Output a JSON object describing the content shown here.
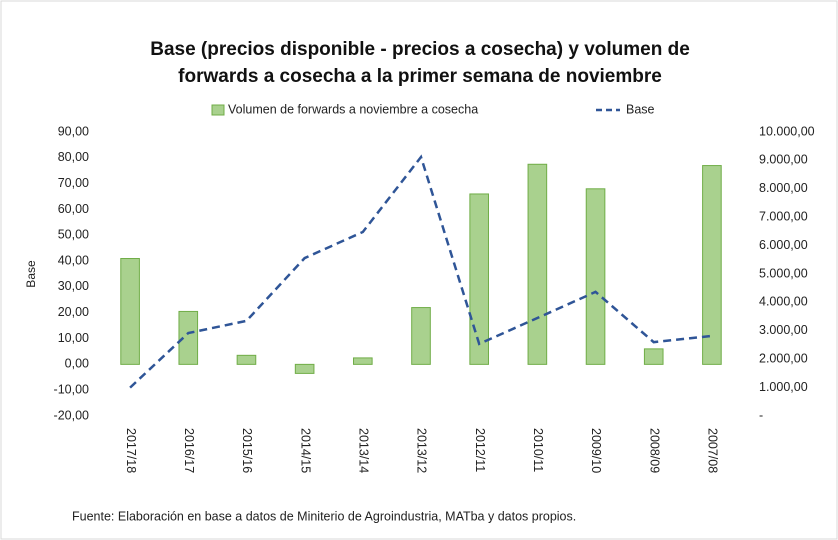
{
  "chart_data": {
    "type": "bar_line",
    "title": [
      "Base (precios disponible - precios a cosecha) y volumen de",
      "forwards a cosecha a la primer semana de noviembre"
    ],
    "y_label": "Base",
    "source": "Fuente: Elaboración en base a datos de Miniterio de Agroindustria, MATba y datos propios.",
    "categories": [
      "2017/18",
      "2016/17",
      "2015/16",
      "2014/15",
      "2013/14",
      "2013/12",
      "2012/11",
      "2010/11",
      "2009/10",
      "2008/09",
      "2007/08"
    ],
    "series": [
      {
        "name": "Volumen de forwards a noviembre a cosecha",
        "type": "bar",
        "color": "#a9d18e",
        "edge": "#70ad47",
        "values": [
          41,
          20.5,
          3.5,
          -3.5,
          2.5,
          22,
          66,
          77.5,
          68,
          6,
          77
        ]
      },
      {
        "name": "Base",
        "type": "line",
        "color": "#2f5597",
        "dashed": true,
        "axis": "y2",
        "values": [
          1000,
          2920,
          3350,
          5560,
          6480,
          9120,
          2540,
          3450,
          4370,
          2600,
          2820
        ]
      }
    ],
    "ylim": [
      -20,
      90
    ],
    "yticks": [
      {
        "value": -20,
        "label": "-20,00"
      },
      {
        "value": -10,
        "label": "-10,00"
      },
      {
        "value": 0,
        "label": "0,00"
      },
      {
        "value": 10,
        "label": "10,00"
      },
      {
        "value": 20,
        "label": "20,00"
      },
      {
        "value": 30,
        "label": "30,00"
      },
      {
        "value": 40,
        "label": "40,00"
      },
      {
        "value": 50,
        "label": "50,00"
      },
      {
        "value": 60,
        "label": "60,00"
      },
      {
        "value": 70,
        "label": "70,00"
      },
      {
        "value": 80,
        "label": "80,00"
      },
      {
        "value": 90,
        "label": "90,00"
      }
    ],
    "y2lim": [
      0,
      10000
    ],
    "y2ticks": [
      {
        "value": 0,
        "label": "-"
      },
      {
        "value": 1000,
        "label": "1.000,00"
      },
      {
        "value": 2000,
        "label": "2.000,00"
      },
      {
        "value": 3000,
        "label": "3.000,00"
      },
      {
        "value": 4000,
        "label": "4.000,00"
      },
      {
        "value": 5000,
        "label": "5.000,00"
      },
      {
        "value": 6000,
        "label": "6.000,00"
      },
      {
        "value": 7000,
        "label": "7.000,00"
      },
      {
        "value": 8000,
        "label": "8.000,00"
      },
      {
        "value": 9000,
        "label": "9.000,00"
      },
      {
        "value": 10000,
        "label": "10.000,00"
      }
    ],
    "legend": "top"
  }
}
